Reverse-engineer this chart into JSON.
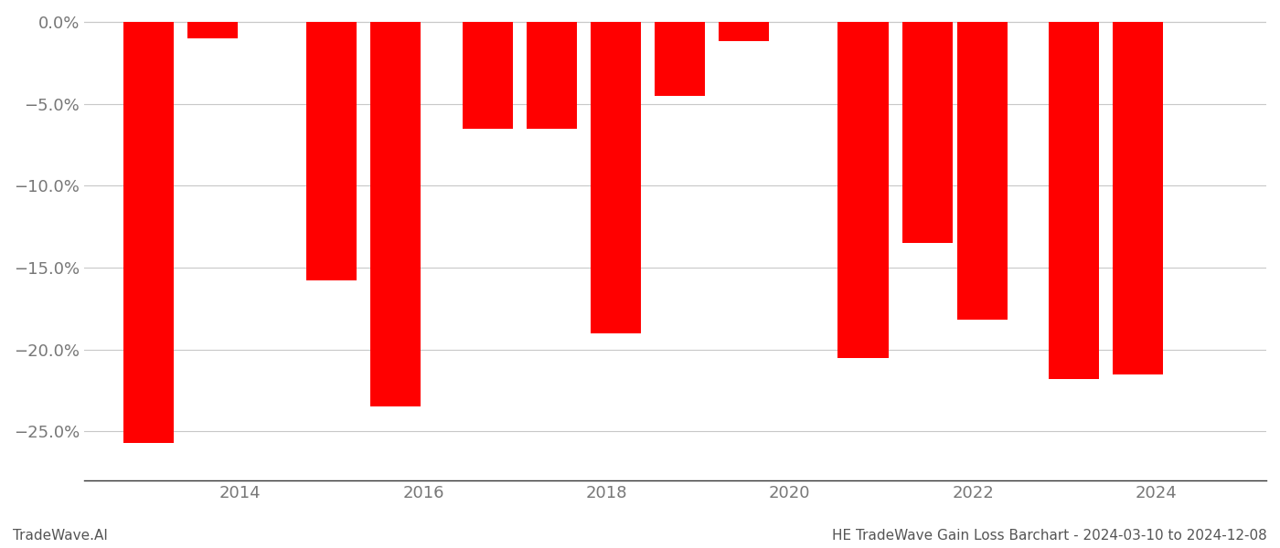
{
  "years": [
    2013,
    2013.7,
    2015,
    2015.7,
    2016.7,
    2017.4,
    2018.1,
    2018.8,
    2019.5,
    2020.8,
    2021.5,
    2022.1,
    2023.1,
    2023.8
  ],
  "values": [
    -0.257,
    -0.01,
    -0.158,
    -0.235,
    -0.065,
    -0.065,
    -0.19,
    -0.045,
    -0.012,
    -0.205,
    -0.135,
    -0.182,
    -0.218,
    -0.215
  ],
  "bar_width": 0.55,
  "bar_color": "#FF0000",
  "title": "HE TradeWave Gain Loss Barchart - 2024-03-10 to 2024-12-08",
  "watermark": "TradeWave.AI",
  "ylim": [
    -0.28,
    0.005
  ],
  "xlim": [
    2012.3,
    2025.2
  ],
  "yticks": [
    0.0,
    -0.05,
    -0.1,
    -0.15,
    -0.2,
    -0.25
  ],
  "xticks": [
    2014,
    2016,
    2018,
    2020,
    2022,
    2024
  ],
  "background_color": "#ffffff",
  "grid_color": "#c8c8c8",
  "tick_color": "#777777",
  "spine_color": "#333333",
  "text_color": "#555555"
}
